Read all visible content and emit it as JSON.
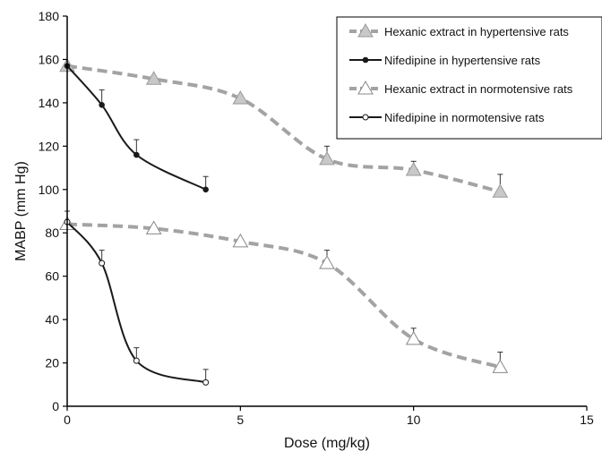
{
  "chart_data": {
    "type": "line",
    "xlabel": "Dose (mg/kg)",
    "ylabel": "MABP (mm Hg)",
    "xlim": [
      0,
      15
    ],
    "ylim": [
      0,
      180
    ],
    "xticks": [
      0,
      5,
      10,
      15
    ],
    "yticks": [
      0,
      20,
      40,
      60,
      80,
      100,
      120,
      140,
      160,
      180
    ],
    "grid": false,
    "legend_position": "top-right",
    "series": [
      {
        "name": "Hexanic extract in hypertensive rats",
        "style": "dashed",
        "color": "#a3a3a3",
        "marker": "triangle-filled",
        "marker_color": "#c8c8c8",
        "x": [
          0,
          2.5,
          5,
          7.5,
          10,
          12.5
        ],
        "y": [
          157,
          151,
          142,
          114,
          109,
          99
        ],
        "error": [
          0,
          0,
          0,
          6,
          4,
          8
        ]
      },
      {
        "name": "Nifedipine in hypertensive rats",
        "style": "solid",
        "color": "#1a1a1a",
        "marker": "dot-filled",
        "marker_color": "#1a1a1a",
        "x": [
          0,
          1,
          2,
          4
        ],
        "y": [
          157,
          139,
          116,
          100
        ],
        "error": [
          0,
          7,
          7,
          6
        ]
      },
      {
        "name": "Hexanic extract in normotensive rats",
        "style": "dashed",
        "color": "#a3a3a3",
        "marker": "triangle-open",
        "marker_color": "#ffffff",
        "x": [
          0,
          2.5,
          5,
          7.5,
          10,
          12.5
        ],
        "y": [
          84,
          82,
          76,
          66,
          31,
          18
        ],
        "error": [
          0,
          0,
          0,
          6,
          5,
          7
        ]
      },
      {
        "name": "Nifedipine in normotensive rats",
        "style": "solid",
        "color": "#1a1a1a",
        "marker": "dot-open",
        "marker_color": "#ffffff",
        "x": [
          0,
          1,
          2,
          4
        ],
        "y": [
          85,
          66,
          21,
          11
        ],
        "error": [
          5,
          6,
          6,
          6
        ]
      }
    ]
  }
}
